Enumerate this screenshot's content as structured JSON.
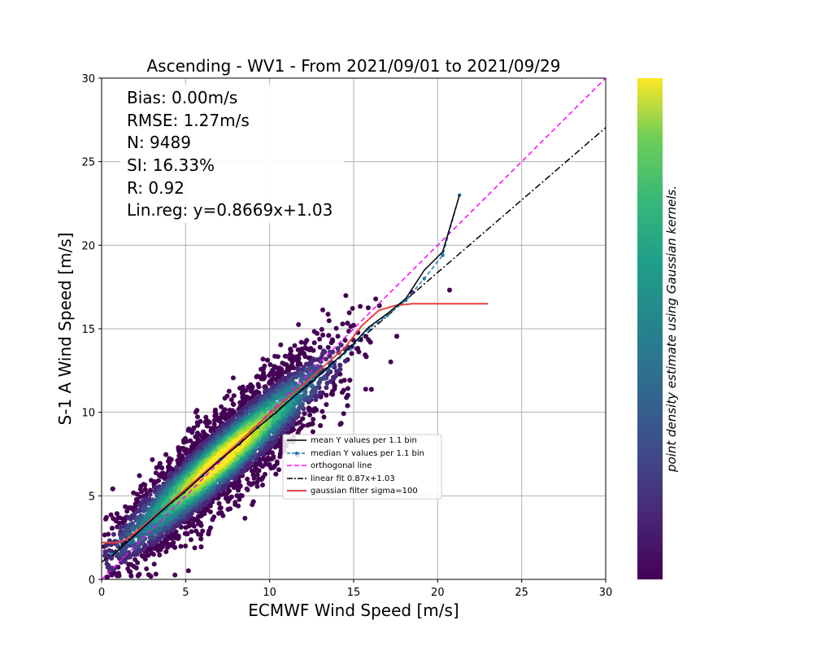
{
  "chart_data": {
    "type": "scatter",
    "title": "Ascending - WV1 - From 2021/09/01 to 2021/09/29",
    "xlabel": "ECMWF Wind Speed [m/s]",
    "ylabel": "S-1 A Wind Speed [m/s]",
    "xlim": [
      0,
      30
    ],
    "ylim": [
      0,
      30
    ],
    "xticks": [
      0,
      5,
      10,
      15,
      20,
      25,
      30
    ],
    "yticks": [
      0,
      5,
      10,
      15,
      20,
      25,
      30
    ],
    "grid": true,
    "colormap": "viridis",
    "colorbar_label": "point density estimate using Gaussian kernels.",
    "stats": [
      "Bias: 0.00m/s",
      "RMSE: 1.27m/s",
      "N: 9489",
      "SI: 16.33%",
      "R: 0.92",
      "Lin.reg: y=0.8669x+1.03"
    ],
    "legend_position": "center-right",
    "series": [
      {
        "name": "mean Y values per 1.1 bin",
        "color": "#000000",
        "style": "solid",
        "points": [
          [
            0.6,
            1.4
          ],
          [
            1.6,
            2.3
          ],
          [
            2.7,
            3.3
          ],
          [
            3.8,
            4.3
          ],
          [
            4.9,
            5.2
          ],
          [
            6.0,
            6.2
          ],
          [
            7.1,
            7.2
          ],
          [
            8.2,
            8.1
          ],
          [
            9.3,
            9.1
          ],
          [
            10.4,
            10.0
          ],
          [
            11.5,
            11.0
          ],
          [
            12.6,
            11.9
          ],
          [
            13.7,
            12.9
          ],
          [
            14.8,
            13.9
          ],
          [
            15.9,
            15.1
          ],
          [
            17.0,
            15.9
          ],
          [
            18.1,
            16.8
          ],
          [
            19.2,
            18.5
          ],
          [
            20.3,
            19.6
          ],
          [
            21.3,
            23.0
          ]
        ]
      },
      {
        "name": "median Y values per 1.1 bin",
        "color": "#1f77b4",
        "style": "dashed-marker",
        "points": [
          [
            0.6,
            1.5
          ],
          [
            1.6,
            2.2
          ],
          [
            2.7,
            3.2
          ],
          [
            3.8,
            4.2
          ],
          [
            4.9,
            5.2
          ],
          [
            6.0,
            6.2
          ],
          [
            7.1,
            7.2
          ],
          [
            8.2,
            8.1
          ],
          [
            9.3,
            9.1
          ],
          [
            10.4,
            10.0
          ],
          [
            11.5,
            10.9
          ],
          [
            12.6,
            11.9
          ],
          [
            13.7,
            12.8
          ],
          [
            14.8,
            13.8
          ],
          [
            15.9,
            15.0
          ],
          [
            17.0,
            15.8
          ],
          [
            18.1,
            16.7
          ],
          [
            19.2,
            18.0
          ],
          [
            20.3,
            19.4
          ],
          [
            21.3,
            23.0
          ]
        ]
      },
      {
        "name": "orthogonal line",
        "color": "#ff00ff",
        "style": "dashed",
        "points": [
          [
            0,
            0
          ],
          [
            30,
            30
          ]
        ]
      },
      {
        "name": "linear fit 0.87x+1.03",
        "color": "#000000",
        "style": "dashdot",
        "points": [
          [
            0,
            1.03
          ],
          [
            30,
            27.04
          ]
        ]
      },
      {
        "name": "gaussian filter sigma=100",
        "color": "#e8403f",
        "style": "solid",
        "points": [
          [
            0,
            2.2
          ],
          [
            1.0,
            2.2
          ],
          [
            1.5,
            2.4
          ],
          [
            2.5,
            3.2
          ],
          [
            5,
            5.4
          ],
          [
            7.5,
            7.6
          ],
          [
            10,
            9.9
          ],
          [
            12.5,
            12.1
          ],
          [
            14.5,
            13.9
          ],
          [
            15.5,
            15.2
          ],
          [
            16.5,
            16.1
          ],
          [
            17.5,
            16.4
          ],
          [
            18.5,
            16.5
          ],
          [
            20,
            16.5
          ],
          [
            23,
            16.5
          ]
        ]
      }
    ]
  }
}
